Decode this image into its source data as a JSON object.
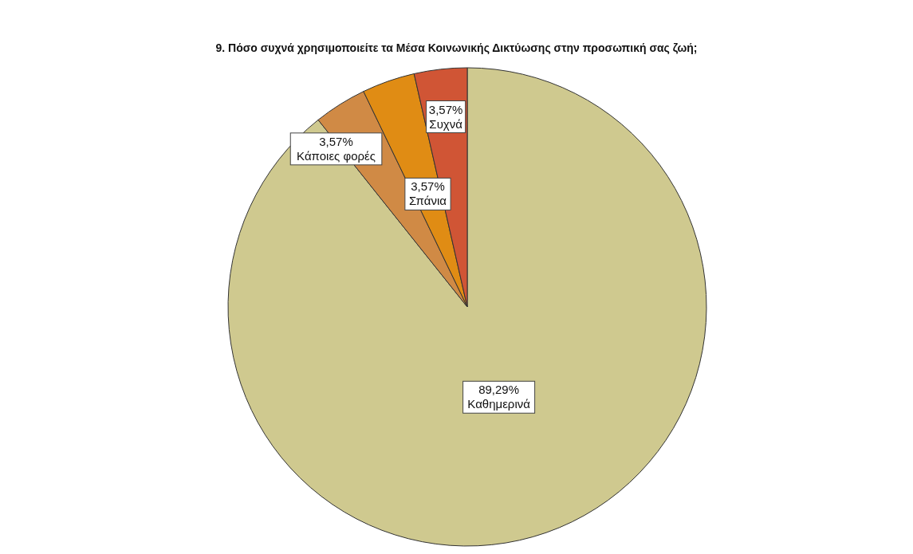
{
  "chart_data": {
    "type": "pie",
    "title": "9.  Πόσο συχνά χρησιμοποιείτε τα Μέσα Κοινωνικής Δικτύωσης στην προσωπική σας ζωή;",
    "categories": [
      "Καθημερινά",
      "Κάποιες φορές",
      "Σπάνια",
      "Συχνά"
    ],
    "values": [
      89.29,
      3.57,
      3.57,
      3.57
    ],
    "value_labels": [
      "89,29%",
      "3,57%",
      "3,57%",
      "3,57%"
    ],
    "colors": [
      "#cfc98f",
      "#d08a45",
      "#e08c14",
      "#d05535"
    ],
    "legend": false
  }
}
